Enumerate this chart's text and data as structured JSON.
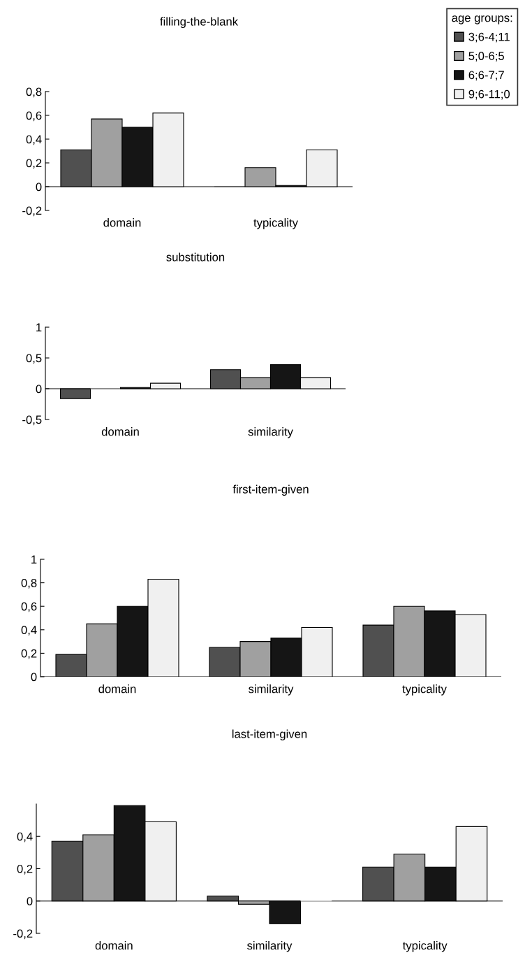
{
  "chart_data": [
    {
      "type": "bar",
      "title": "filling-the-blank",
      "legend_title": "age groups:",
      "legend": "top right",
      "categories": [
        "domain",
        "typicality"
      ],
      "ylim": [
        -0.2,
        0.8
      ],
      "yticks": [
        {
          "value": -0.2,
          "label": "-0,2"
        },
        0,
        {
          "value": 0.2,
          "label": "0,2"
        },
        {
          "value": 0.4,
          "label": "0,4"
        },
        {
          "value": 0.6,
          "label": "0,6"
        },
        {
          "value": 0.8,
          "label": "0,8"
        }
      ],
      "series": [
        {
          "name": "3;6-4;11",
          "color": "#505050",
          "values": [
            0.31,
            0.0
          ]
        },
        {
          "name": "5;0-6;5",
          "color": "#a0a0a0",
          "values": [
            0.57,
            0.16
          ]
        },
        {
          "name": "6;6-7;7",
          "color": "#151515",
          "values": [
            0.5,
            0.01
          ]
        },
        {
          "name": "9;6-11;0",
          "color": "#f0f0f0",
          "values": [
            0.62,
            0.31
          ]
        }
      ]
    },
    {
      "type": "bar",
      "title": "substitution",
      "categories": [
        "domain",
        "similarity"
      ],
      "ylim": [
        -0.5,
        1
      ],
      "yticks": [
        {
          "value": -0.5,
          "label": "-0,5"
        },
        0,
        {
          "value": 0.5,
          "label": "0,5"
        },
        1
      ],
      "series": [
        {
          "color": "#505050",
          "values": [
            -0.16,
            0.31
          ]
        },
        {
          "color": "#a0a0a0",
          "values": [
            0.0,
            0.18
          ]
        },
        {
          "color": "#151515",
          "values": [
            0.02,
            0.39
          ]
        },
        {
          "color": "#f0f0f0",
          "values": [
            0.09,
            0.18
          ]
        }
      ]
    },
    {
      "type": "bar",
      "title": "first-item-given",
      "categories": [
        "domain",
        "similarity",
        "typicality"
      ],
      "ylim": [
        0,
        1
      ],
      "yticks": [
        0,
        {
          "value": 0.2,
          "label": "0,2"
        },
        {
          "value": 0.4,
          "label": "0,4"
        },
        {
          "value": 0.6,
          "label": "0,6"
        },
        {
          "value": 0.8,
          "label": "0,8"
        },
        1
      ],
      "series": [
        {
          "color": "#505050",
          "values": [
            0.19,
            0.25,
            0.44
          ]
        },
        {
          "color": "#a0a0a0",
          "values": [
            0.45,
            0.3,
            0.6
          ]
        },
        {
          "color": "#151515",
          "values": [
            0.6,
            0.33,
            0.56
          ]
        },
        {
          "color": "#f0f0f0",
          "values": [
            0.83,
            0.42,
            0.53
          ]
        }
      ]
    },
    {
      "type": "bar",
      "title": "last-item-given",
      "categories": [
        "domain",
        "similarity",
        "typicality"
      ],
      "ylim": [
        -0.2,
        0.6
      ],
      "yticks": [
        {
          "value": -0.2,
          "label": "-0,2"
        },
        0,
        {
          "value": 0.2,
          "label": "0,2"
        },
        {
          "value": 0.4,
          "label": "0,4"
        }
      ],
      "series": [
        {
          "color": "#505050",
          "values": [
            0.37,
            0.03,
            0.21
          ]
        },
        {
          "color": "#a0a0a0",
          "values": [
            0.41,
            -0.02,
            0.29
          ]
        },
        {
          "color": "#151515",
          "values": [
            0.59,
            -0.14,
            0.21
          ]
        },
        {
          "color": "#f0f0f0",
          "values": [
            0.49,
            0.0,
            0.46
          ]
        }
      ]
    }
  ]
}
